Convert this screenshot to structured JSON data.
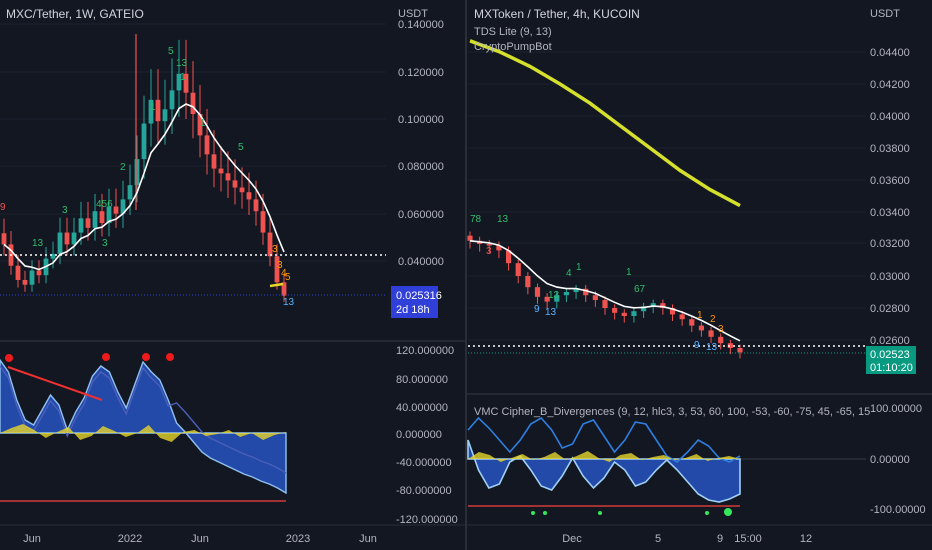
{
  "colors": {
    "background": "#131722",
    "up": "#26a69a",
    "down": "#ef5350",
    "ma": "#ffffff",
    "sma_yellow": "#d4e02b",
    "wave_blue": "#2962ff",
    "wave_light": "#6fa8dc",
    "money_yellow": "#e6d52a",
    "price_label_left": "#2f3fd8",
    "price_label_right": "#089981",
    "tds_green": "#2ebd6b",
    "tds_orange": "#ff9800",
    "tds_blue": "#5ab4ff"
  },
  "left_chart": {
    "title": "MXC/Tether, 1W, GATEIO",
    "unit": "USDT",
    "price_ticks": [
      "0.140000",
      "0.120000",
      "0.100000",
      "0.080000",
      "0.060000",
      "0.040000"
    ],
    "last_price": "0.025316",
    "countdown": "2d 18h",
    "osc_ticks": [
      "120.000000",
      "80.000000",
      "40.000000",
      "0.000000",
      "-40.000000",
      "-80.000000",
      "-120.000000"
    ],
    "time_labels": [
      "Jun",
      "2022",
      "Jun",
      "2023",
      "Jun"
    ],
    "tds_labels": [
      {
        "t": "9",
        "c": "red"
      },
      {
        "t": "3",
        "c": "green"
      },
      {
        "t": "13",
        "c": "green"
      },
      {
        "t": "3",
        "c": "green"
      },
      {
        "t": "456",
        "c": "green"
      },
      {
        "t": "2",
        "c": "green"
      },
      {
        "t": "5",
        "c": "green"
      },
      {
        "t": "13",
        "c": "green"
      },
      {
        "t": "1",
        "c": "green"
      },
      {
        "t": "5",
        "c": "green"
      },
      {
        "t": "1",
        "c": "green"
      },
      {
        "t": "1",
        "c": "green"
      },
      {
        "t": "3",
        "c": "orange"
      },
      {
        "t": "3",
        "c": "orange"
      },
      {
        "t": "4",
        "c": "orange"
      },
      {
        "t": "5",
        "c": "orange"
      },
      {
        "t": "13",
        "c": "blue"
      }
    ]
  },
  "right_chart": {
    "title": "MXToken / Tether, 4h, KUCOIN",
    "unit": "USDT",
    "indicators": [
      "TDS Lite (9, 13)",
      "CryptoPumpBot"
    ],
    "price_ticks": [
      "0.04400",
      "0.04200",
      "0.04000",
      "0.03800",
      "0.03600",
      "0.03400",
      "0.03200",
      "0.03000",
      "0.02800",
      "0.02600"
    ],
    "last_price": "0.02523",
    "countdown": "01:10:20",
    "osc_title": "VMC Cipher_B_Divergences (9, 12, hlc3, 3, 53, 60, 100, -53, -60, -75, 45, -65, 15",
    "osc_ticks": [
      "100.00000",
      "0.00000",
      "-100.00000"
    ],
    "time_labels": [
      "Dec",
      "5",
      "9",
      "15:00",
      "12"
    ],
    "tds_labels": [
      {
        "t": "78",
        "c": "green"
      },
      {
        "t": "13",
        "c": "green"
      },
      {
        "t": "3",
        "c": "red"
      },
      {
        "t": "13",
        "c": "green"
      },
      {
        "t": "4",
        "c": "green"
      },
      {
        "t": "1",
        "c": "green"
      },
      {
        "t": "1",
        "c": "green"
      },
      {
        "t": "67",
        "c": "green"
      },
      {
        "t": "9",
        "c": "blue"
      },
      {
        "t": "13",
        "c": "blue"
      },
      {
        "t": "1",
        "c": "orange"
      },
      {
        "t": "2",
        "c": "orange"
      },
      {
        "t": "3",
        "c": "orange"
      },
      {
        "t": "9",
        "c": "blue"
      },
      {
        "t": "13",
        "c": "blue"
      }
    ]
  },
  "chart_data": [
    {
      "type": "candlestick",
      "title": "MXC/Tether, 1W, GATEIO",
      "ylabel": "USDT",
      "ylim": [
        0.02,
        0.14
      ],
      "series": [
        {
          "name": "close",
          "values": [
            0.047,
            0.038,
            0.032,
            0.03,
            0.036,
            0.034,
            0.041,
            0.043,
            0.052,
            0.047,
            0.052,
            0.058,
            0.054,
            0.061,
            0.056,
            0.063,
            0.06,
            0.066,
            0.072,
            0.083,
            0.098,
            0.108,
            0.099,
            0.104,
            0.112,
            0.119,
            0.111,
            0.102,
            0.093,
            0.085,
            0.079,
            0.077,
            0.074,
            0.071,
            0.069,
            0.066,
            0.061,
            0.052,
            0.042,
            0.031,
            0.025316
          ]
        }
      ]
    },
    {
      "type": "candlestick",
      "title": "MXToken / Tether, 4h, KUCOIN",
      "ylabel": "USDT",
      "ylim": [
        0.025,
        0.045
      ],
      "series": [
        {
          "name": "close",
          "values": [
            0.0322,
            0.032,
            0.0319,
            0.0316,
            0.0308,
            0.03,
            0.0293,
            0.0287,
            0.0284,
            0.0288,
            0.029,
            0.0292,
            0.0288,
            0.0285,
            0.028,
            0.0277,
            0.0275,
            0.0278,
            0.0281,
            0.0283,
            0.028,
            0.0276,
            0.0273,
            0.0269,
            0.0266,
            0.0262,
            0.0258,
            0.0255,
            0.02523
          ]
        },
        {
          "name": "SMA",
          "values": [
            0.0447,
            0.044,
            0.0431,
            0.042,
            0.0408,
            0.0394,
            0.038,
            0.0366,
            0.0354,
            0.0344
          ]
        }
      ]
    }
  ]
}
